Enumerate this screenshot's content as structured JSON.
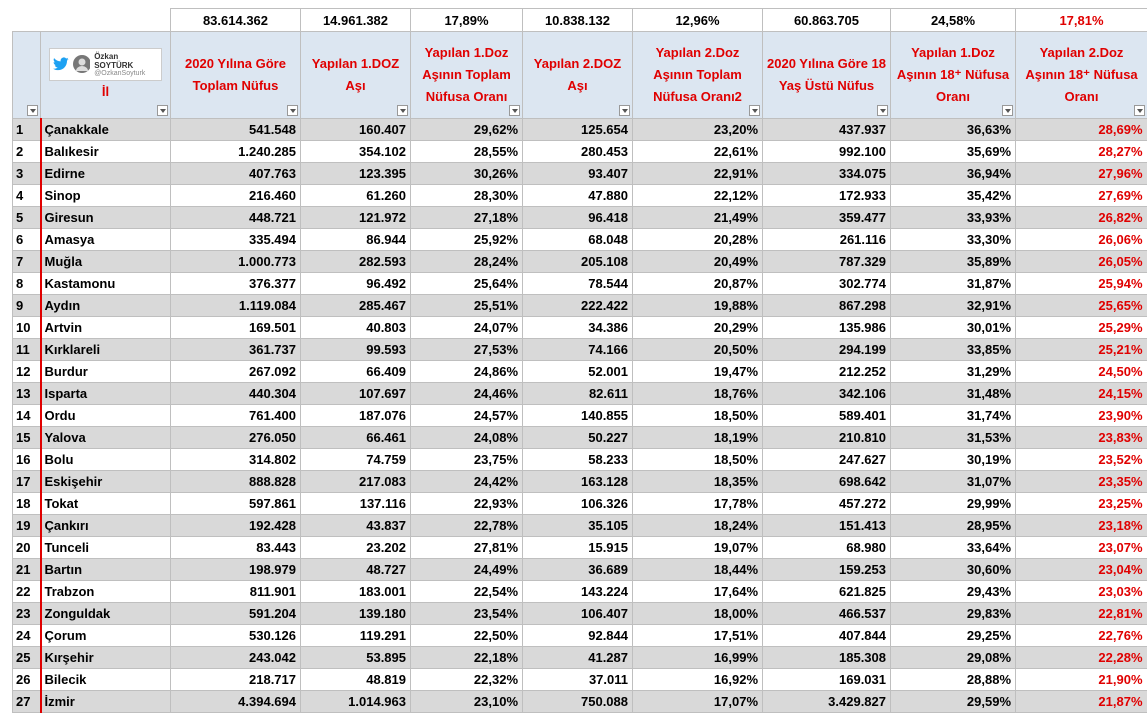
{
  "totals": [
    "83.614.362",
    "14.961.382",
    "17,89%",
    "10.838.132",
    "12,96%",
    "60.863.705",
    "24,58%",
    "17,81%"
  ],
  "header": {
    "author_name": "Özkan SOYTÜRK",
    "author_handle": "@OzkanSoyturk",
    "name_column": "İl",
    "columns": [
      "2020 Yılına Göre Toplam Nüfus",
      "Yapılan 1.DOZ Aşı",
      "Yapılan 1.Doz Aşının Toplam Nüfusa  Oranı",
      "Yapılan 2.DOZ Aşı",
      "Yapılan 2.Doz Aşının Toplam Nüfusa  Oranı2",
      "2020 Yılına Göre 18 Yaş Üstü Nüfus",
      "Yapılan 1.Doz Aşının 18⁺ Nüfusa  Oranı",
      "Yapılan 2.Doz Aşının 18⁺ Nüfusa  Oranı"
    ]
  },
  "table": {
    "rows": [
      [
        "1",
        "Çanakkale",
        "541.548",
        "160.407",
        "29,62%",
        "125.654",
        "23,20%",
        "437.937",
        "36,63%",
        "28,69%"
      ],
      [
        "2",
        "Balıkesir",
        "1.240.285",
        "354.102",
        "28,55%",
        "280.453",
        "22,61%",
        "992.100",
        "35,69%",
        "28,27%"
      ],
      [
        "3",
        "Edirne",
        "407.763",
        "123.395",
        "30,26%",
        "93.407",
        "22,91%",
        "334.075",
        "36,94%",
        "27,96%"
      ],
      [
        "4",
        "Sinop",
        "216.460",
        "61.260",
        "28,30%",
        "47.880",
        "22,12%",
        "172.933",
        "35,42%",
        "27,69%"
      ],
      [
        "5",
        "Giresun",
        "448.721",
        "121.972",
        "27,18%",
        "96.418",
        "21,49%",
        "359.477",
        "33,93%",
        "26,82%"
      ],
      [
        "6",
        "Amasya",
        "335.494",
        "86.944",
        "25,92%",
        "68.048",
        "20,28%",
        "261.116",
        "33,30%",
        "26,06%"
      ],
      [
        "7",
        "Muğla",
        "1.000.773",
        "282.593",
        "28,24%",
        "205.108",
        "20,49%",
        "787.329",
        "35,89%",
        "26,05%"
      ],
      [
        "8",
        "Kastamonu",
        "376.377",
        "96.492",
        "25,64%",
        "78.544",
        "20,87%",
        "302.774",
        "31,87%",
        "25,94%"
      ],
      [
        "9",
        "Aydın",
        "1.119.084",
        "285.467",
        "25,51%",
        "222.422",
        "19,88%",
        "867.298",
        "32,91%",
        "25,65%"
      ],
      [
        "10",
        "Artvin",
        "169.501",
        "40.803",
        "24,07%",
        "34.386",
        "20,29%",
        "135.986",
        "30,01%",
        "25,29%"
      ],
      [
        "11",
        "Kırklareli",
        "361.737",
        "99.593",
        "27,53%",
        "74.166",
        "20,50%",
        "294.199",
        "33,85%",
        "25,21%"
      ],
      [
        "12",
        "Burdur",
        "267.092",
        "66.409",
        "24,86%",
        "52.001",
        "19,47%",
        "212.252",
        "31,29%",
        "24,50%"
      ],
      [
        "13",
        "Isparta",
        "440.304",
        "107.697",
        "24,46%",
        "82.611",
        "18,76%",
        "342.106",
        "31,48%",
        "24,15%"
      ],
      [
        "14",
        "Ordu",
        "761.400",
        "187.076",
        "24,57%",
        "140.855",
        "18,50%",
        "589.401",
        "31,74%",
        "23,90%"
      ],
      [
        "15",
        "Yalova",
        "276.050",
        "66.461",
        "24,08%",
        "50.227",
        "18,19%",
        "210.810",
        "31,53%",
        "23,83%"
      ],
      [
        "16",
        "Bolu",
        "314.802",
        "74.759",
        "23,75%",
        "58.233",
        "18,50%",
        "247.627",
        "30,19%",
        "23,52%"
      ],
      [
        "17",
        "Eskişehir",
        "888.828",
        "217.083",
        "24,42%",
        "163.128",
        "18,35%",
        "698.642",
        "31,07%",
        "23,35%"
      ],
      [
        "18",
        "Tokat",
        "597.861",
        "137.116",
        "22,93%",
        "106.326",
        "17,78%",
        "457.272",
        "29,99%",
        "23,25%"
      ],
      [
        "19",
        "Çankırı",
        "192.428",
        "43.837",
        "22,78%",
        "35.105",
        "18,24%",
        "151.413",
        "28,95%",
        "23,18%"
      ],
      [
        "20",
        "Tunceli",
        "83.443",
        "23.202",
        "27,81%",
        "15.915",
        "19,07%",
        "68.980",
        "33,64%",
        "23,07%"
      ],
      [
        "21",
        "Bartın",
        "198.979",
        "48.727",
        "24,49%",
        "36.689",
        "18,44%",
        "159.253",
        "30,60%",
        "23,04%"
      ],
      [
        "22",
        "Trabzon",
        "811.901",
        "183.001",
        "22,54%",
        "143.224",
        "17,64%",
        "621.825",
        "29,43%",
        "23,03%"
      ],
      [
        "23",
        "Zonguldak",
        "591.204",
        "139.180",
        "23,54%",
        "106.407",
        "18,00%",
        "466.537",
        "29,83%",
        "22,81%"
      ],
      [
        "24",
        "Çorum",
        "530.126",
        "119.291",
        "22,50%",
        "92.844",
        "17,51%",
        "407.844",
        "29,25%",
        "22,76%"
      ],
      [
        "25",
        "Kırşehir",
        "243.042",
        "53.895",
        "22,18%",
        "41.287",
        "16,99%",
        "185.308",
        "29,08%",
        "22,28%"
      ],
      [
        "26",
        "Bilecik",
        "218.717",
        "48.819",
        "22,32%",
        "37.011",
        "16,92%",
        "169.031",
        "28,88%",
        "21,90%"
      ],
      [
        "27",
        "İzmir",
        "4.394.694",
        "1.014.963",
        "23,10%",
        "750.088",
        "17,07%",
        "3.429.827",
        "29,59%",
        "21,87%"
      ]
    ]
  }
}
